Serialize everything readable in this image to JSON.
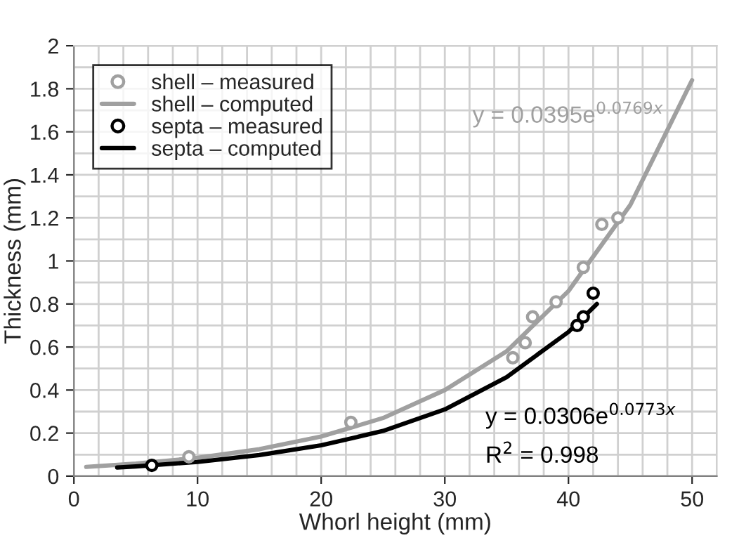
{
  "chart_data": {
    "type": "line",
    "xlabel": "Whorl height (mm)",
    "ylabel": "Thickness (mm)",
    "xlim": [
      0,
      52
    ],
    "ylim": [
      0,
      2
    ],
    "xticks": [
      0,
      10,
      20,
      30,
      40,
      50
    ],
    "yticks": [
      0,
      0.2,
      0.4,
      0.6,
      0.8,
      1,
      1.2,
      1.4,
      1.6,
      1.8,
      2
    ],
    "grid": true,
    "legend": "top left",
    "series": [
      {
        "name": "shell – measured",
        "type": "scatter",
        "marker": "circle",
        "color": "#a0a0a0",
        "x": [
          9.3,
          22.4,
          35.5,
          36.5,
          37.1,
          39.0,
          41.2,
          42.7,
          44.0
        ],
        "values": [
          0.09,
          0.25,
          0.55,
          0.62,
          0.74,
          0.81,
          0.97,
          1.17,
          1.2
        ]
      },
      {
        "name": "shell – computed",
        "color": "#a0a0a0",
        "x": [
          1,
          5,
          10,
          15,
          20,
          25,
          30,
          35,
          40,
          45,
          50
        ],
        "values": [
          0.043,
          0.058,
          0.085,
          0.125,
          0.184,
          0.27,
          0.4,
          0.58,
          0.86,
          1.26,
          1.84
        ]
      },
      {
        "name": "septa – measured",
        "type": "scatter",
        "marker": "circle",
        "color": "#000000",
        "x": [
          6.3,
          40.7,
          41.2,
          42.0
        ],
        "values": [
          0.05,
          0.7,
          0.74,
          0.85
        ]
      },
      {
        "name": "septa – computed",
        "color": "#000000",
        "x": [
          3.5,
          5,
          10,
          15,
          20,
          25,
          30,
          35,
          40,
          42.3
        ],
        "values": [
          0.04,
          0.045,
          0.066,
          0.098,
          0.143,
          0.21,
          0.31,
          0.46,
          0.67,
          0.8
        ]
      }
    ],
    "annotations": [
      "y = 0.0395e$^{0.0769x}$",
      "y = 0.0306e$^{0.0773x}$",
      "R$^{2}$ = 0.998"
    ]
  }
}
